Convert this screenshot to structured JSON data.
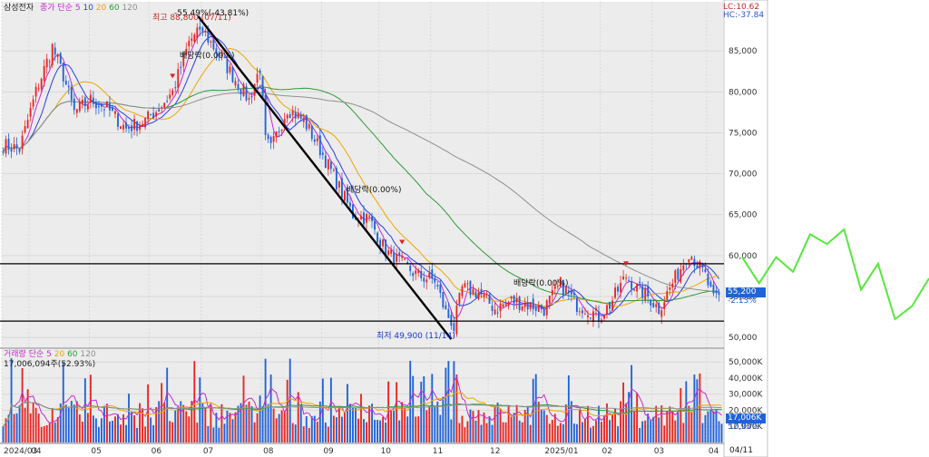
{
  "header": {
    "stock_name": "삼성전자",
    "legend_prefix": "종가 단순",
    "ma_periods": [
      "5",
      "10",
      "20",
      "60",
      "120"
    ],
    "ma_colors": [
      "#c72bd0",
      "#2a3ee6",
      "#f0a500",
      "#2e9b3b",
      "#8f8f8f"
    ],
    "lc_value": "LC:10.62",
    "hc_value": "HC:-37.84"
  },
  "annotations": {
    "high_note": "최고 88,800 (07/11)",
    "swing_note": "-55.49%(-43.81%)",
    "low_note": "최저 49,900 (11/14)",
    "dividend_label_1": "배당락(0.00%)",
    "dividend_label_2": "배당락(0.00%)",
    "dividend_label_3": "배당락(0.00%)"
  },
  "price_badge": {
    "price": "55,200",
    "change": "-2.13%"
  },
  "volume_panel": {
    "legend_prefix": "거래량 단순",
    "ma_periods": [
      "5",
      "20",
      "60",
      "120"
    ],
    "ma_colors": [
      "#c72bd0",
      "#f0a500",
      "#2e9b3b",
      "#8f8f8f"
    ],
    "current_volume_text": "17,006,094주(52.93%)",
    "badge_volume": "17,006K",
    "badge_pct": "52.93%"
  },
  "colors": {
    "up": "#e8261f",
    "down": "#1f63d8",
    "trendline": "#000000",
    "grid": "#d4d4d4",
    "plot_bg": "#ececec",
    "axis_bg": "#ffffff",
    "badge_bg": "#1f63d8",
    "overlay_line": "#55e83a"
  },
  "chart_data": {
    "type": "candlestick",
    "price_axis": {
      "ylim": [
        48800,
        91000
      ],
      "ticks": [
        50000,
        55000,
        60000,
        65000,
        70000,
        75000,
        80000,
        85000
      ],
      "tick_labels": [
        "50,000",
        "55,000",
        "60,000",
        "65,000",
        "70,000",
        "75,000",
        "80,000",
        "85,000"
      ]
    },
    "volume_axis": {
      "ylim": [
        0,
        58000
      ],
      "ticks": [
        10000,
        20000,
        30000,
        40000,
        50000
      ],
      "tick_labels": [
        "10,000K",
        "20,000K",
        "30,000K",
        "40,000K",
        "50,000K"
      ]
    },
    "x_axis": {
      "month_labels": [
        "2024/03",
        "04",
        "05",
        "06",
        "07",
        "08",
        "09",
        "10",
        "11",
        "12",
        "2025/01",
        "02",
        "03",
        "04"
      ],
      "month_start_index": [
        0,
        10,
        32,
        54,
        73,
        95,
        117,
        138,
        157,
        178,
        198,
        219,
        238,
        258
      ],
      "end_label": "04/11"
    },
    "high": {
      "value": 88800,
      "date": "07/11"
    },
    "low": {
      "value": 49900,
      "date": "11/14"
    },
    "horizontal_levels": [
      59000,
      52000
    ],
    "trendline": [
      {
        "date": "07/11",
        "value": 88800
      },
      {
        "date": "11/14",
        "value": 49900
      }
    ],
    "dividend_markers": [
      {
        "label": "배당락(0.00%)",
        "index": 62
      },
      {
        "label": "배당락(0.00%)",
        "index": 146
      },
      {
        "label": "배당락(0.00%)",
        "index": 228
      }
    ],
    "anchors": [
      {
        "i": 0,
        "v": 73500
      },
      {
        "i": 6,
        "v": 73000
      },
      {
        "i": 12,
        "v": 80000
      },
      {
        "i": 18,
        "v": 85500
      },
      {
        "i": 22,
        "v": 82000
      },
      {
        "i": 26,
        "v": 77500
      },
      {
        "i": 32,
        "v": 79000
      },
      {
        "i": 38,
        "v": 78000
      },
      {
        "i": 45,
        "v": 75500
      },
      {
        "i": 52,
        "v": 76500
      },
      {
        "i": 57,
        "v": 78000
      },
      {
        "i": 62,
        "v": 80000
      },
      {
        "i": 68,
        "v": 86000
      },
      {
        "i": 72,
        "v": 88000
      },
      {
        "i": 78,
        "v": 85000
      },
      {
        "i": 84,
        "v": 82000
      },
      {
        "i": 90,
        "v": 79000
      },
      {
        "i": 94,
        "v": 83000
      },
      {
        "i": 96,
        "v": 74000
      },
      {
        "i": 98,
        "v": 73000
      },
      {
        "i": 104,
        "v": 78000
      },
      {
        "i": 110,
        "v": 76500
      },
      {
        "i": 116,
        "v": 73000
      },
      {
        "i": 122,
        "v": 69000
      },
      {
        "i": 128,
        "v": 65000
      },
      {
        "i": 134,
        "v": 64500
      },
      {
        "i": 140,
        "v": 60500
      },
      {
        "i": 146,
        "v": 59000
      },
      {
        "i": 152,
        "v": 57500
      },
      {
        "i": 158,
        "v": 57000
      },
      {
        "i": 162,
        "v": 53000
      },
      {
        "i": 165,
        "v": 51500
      },
      {
        "i": 168,
        "v": 56000
      },
      {
        "i": 174,
        "v": 55500
      },
      {
        "i": 180,
        "v": 53500
      },
      {
        "i": 186,
        "v": 54500
      },
      {
        "i": 192,
        "v": 54000
      },
      {
        "i": 198,
        "v": 53500
      },
      {
        "i": 204,
        "v": 56500
      },
      {
        "i": 210,
        "v": 54000
      },
      {
        "i": 214,
        "v": 53500
      },
      {
        "i": 218,
        "v": 52500
      },
      {
        "i": 222,
        "v": 54000
      },
      {
        "i": 228,
        "v": 57500
      },
      {
        "i": 232,
        "v": 56000
      },
      {
        "i": 236,
        "v": 55000
      },
      {
        "i": 240,
        "v": 53500
      },
      {
        "i": 244,
        "v": 56000
      },
      {
        "i": 248,
        "v": 58500
      },
      {
        "i": 251,
        "v": 60500
      },
      {
        "i": 254,
        "v": 59000
      },
      {
        "i": 257,
        "v": 57500
      },
      {
        "i": 260,
        "v": 54500
      },
      {
        "i": 262,
        "v": 55200
      }
    ],
    "overlay_line_values": [
      0.48,
      0.32,
      0.48,
      0.39,
      0.62,
      0.56,
      0.65,
      0.28,
      0.44,
      0.1,
      0.18,
      0.35
    ]
  }
}
